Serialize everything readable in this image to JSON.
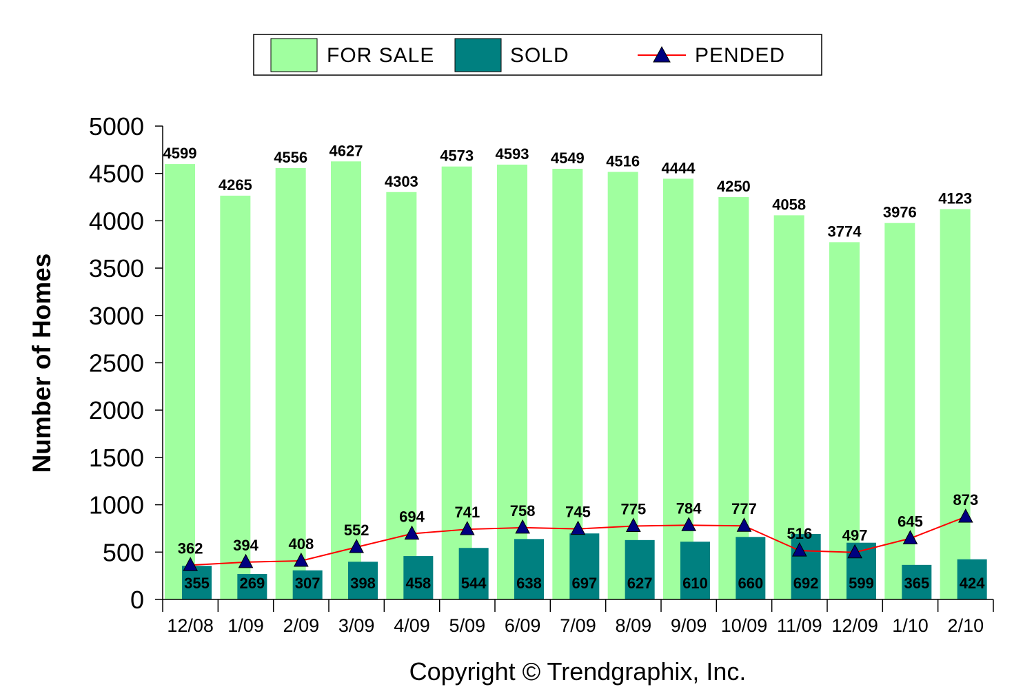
{
  "chart_data": {
    "type": "bar",
    "categories": [
      "12/08",
      "1/09",
      "2/09",
      "3/09",
      "4/09",
      "5/09",
      "6/09",
      "7/09",
      "8/09",
      "9/09",
      "10/09",
      "11/09",
      "12/09",
      "1/10",
      "2/10"
    ],
    "series": [
      {
        "name": "FOR SALE",
        "kind": "bar",
        "color": "#a0ff9f",
        "values": [
          4599,
          4265,
          4556,
          4627,
          4303,
          4573,
          4593,
          4549,
          4516,
          4444,
          4250,
          4058,
          3774,
          3976,
          4123
        ]
      },
      {
        "name": "SOLD",
        "kind": "bar",
        "color": "#008080",
        "values": [
          355,
          269,
          307,
          398,
          458,
          544,
          638,
          697,
          627,
          610,
          660,
          692,
          599,
          365,
          424
        ]
      },
      {
        "name": "PENDED",
        "kind": "line",
        "color": "#ff0000",
        "marker_color": "#000080",
        "values": [
          362,
          394,
          408,
          552,
          694,
          741,
          758,
          745,
          775,
          784,
          777,
          516,
          497,
          645,
          873
        ]
      }
    ],
    "title": "",
    "xlabel": "",
    "ylabel": "Number of Homes",
    "ylim": [
      0,
      5000
    ],
    "yticks": [
      0,
      500,
      1000,
      1500,
      2000,
      2500,
      3000,
      3500,
      4000,
      4500,
      5000
    ],
    "grid": false,
    "legend": "top-center",
    "footer": "Copyright © Trendgraphix, Inc."
  }
}
